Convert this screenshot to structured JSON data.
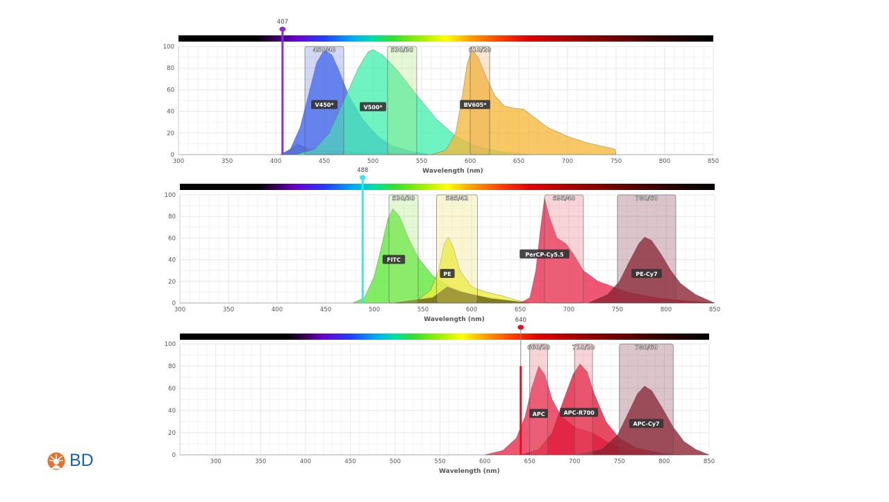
{
  "brand": {
    "logo_text": "BD",
    "logo_color": "#e8702a",
    "text_color": "#1f5fa8"
  },
  "chart_data": [
    {
      "type": "area",
      "xlabel": "Wavelength (nm)",
      "xlim": [
        300,
        850
      ],
      "ylim": [
        0,
        100
      ],
      "xticks": [
        300,
        350,
        400,
        450,
        500,
        550,
        600,
        650,
        700,
        750,
        800,
        850
      ],
      "yticks": [
        0,
        20,
        40,
        60,
        80,
        100
      ],
      "grid": true,
      "laser": {
        "label": "407",
        "wavelength": 407,
        "color": "#8a2be2"
      },
      "filters": [
        {
          "label": "450/40",
          "center": 450,
          "width": 40,
          "color": "#6a7ae0"
        },
        {
          "label": "530/30",
          "center": 530,
          "width": 30,
          "color": "#a8e878"
        },
        {
          "label": "610/20",
          "center": 610,
          "width": 20,
          "color": "#f0a860"
        }
      ],
      "series": [
        {
          "name": "",
          "color": "#b09060",
          "points": [
            [
              405,
              0
            ],
            [
              415,
              5
            ],
            [
              422,
              10
            ],
            [
              435,
              5
            ],
            [
              450,
              4
            ],
            [
              500,
              2
            ],
            [
              560,
              0
            ]
          ]
        },
        {
          "name": "V450*",
          "color": "#3a64f0",
          "label_at": [
            450,
            46
          ],
          "points": [
            [
              405,
              0
            ],
            [
              415,
              5
            ],
            [
              425,
              25
            ],
            [
              435,
              60
            ],
            [
              442,
              85
            ],
            [
              450,
              97
            ],
            [
              458,
              92
            ],
            [
              465,
              78
            ],
            [
              475,
              55
            ],
            [
              490,
              32
            ],
            [
              505,
              17
            ],
            [
              520,
              8
            ],
            [
              540,
              3
            ],
            [
              560,
              0
            ]
          ]
        },
        {
          "name": "V500*",
          "color": "#46f0b0",
          "label_at": [
            500,
            44
          ],
          "points": [
            [
              420,
              0
            ],
            [
              440,
              5
            ],
            [
              455,
              20
            ],
            [
              470,
              50
            ],
            [
              485,
              80
            ],
            [
              495,
              95
            ],
            [
              500,
              97
            ],
            [
              510,
              92
            ],
            [
              525,
              78
            ],
            [
              545,
              55
            ],
            [
              565,
              33
            ],
            [
              585,
              17
            ],
            [
              605,
              8
            ],
            [
              630,
              3
            ],
            [
              660,
              0
            ]
          ]
        },
        {
          "name": "BV605*",
          "color": "#f5b83a",
          "label_at": [
            605,
            46
          ],
          "points": [
            [
              560,
              0
            ],
            [
              575,
              4
            ],
            [
              585,
              20
            ],
            [
              592,
              55
            ],
            [
              597,
              85
            ],
            [
              602,
              97
            ],
            [
              608,
              90
            ],
            [
              615,
              75
            ],
            [
              625,
              55
            ],
            [
              635,
              45
            ],
            [
              645,
              43
            ],
            [
              655,
              42
            ],
            [
              665,
              35
            ],
            [
              680,
              25
            ],
            [
              700,
              17
            ],
            [
              720,
              11
            ],
            [
              740,
              7
            ],
            [
              749,
              5
            ],
            [
              750,
              0
            ]
          ]
        }
      ]
    },
    {
      "type": "area",
      "xlabel": "Wavelength (nm)",
      "xlim": [
        300,
        850
      ],
      "ylim": [
        0,
        100
      ],
      "xticks": [
        300,
        350,
        400,
        450,
        500,
        550,
        600,
        650,
        700,
        750,
        800,
        850
      ],
      "yticks": [
        0,
        20,
        40,
        60,
        80,
        100
      ],
      "grid": true,
      "laser": {
        "label": "488",
        "wavelength": 488,
        "color": "#3ee6e6"
      },
      "filters": [
        {
          "label": "530/30",
          "center": 530,
          "width": 30,
          "color": "#a8e878"
        },
        {
          "label": "585/42",
          "center": 585,
          "width": 42,
          "color": "#f0e070"
        },
        {
          "label": "695/40",
          "center": 695,
          "width": 40,
          "color": "#e87080"
        },
        {
          "label": "780/60",
          "center": 780,
          "width": 60,
          "color": "#8a4050"
        }
      ],
      "series": [
        {
          "name": "FITC",
          "color": "#5ee83a",
          "label_at": [
            520,
            40
          ],
          "points": [
            [
              478,
              0
            ],
            [
              490,
              5
            ],
            [
              500,
              25
            ],
            [
              508,
              55
            ],
            [
              514,
              78
            ],
            [
              519,
              87
            ],
            [
              526,
              80
            ],
            [
              535,
              60
            ],
            [
              545,
              42
            ],
            [
              560,
              25
            ],
            [
              580,
              14
            ],
            [
              600,
              8
            ],
            [
              620,
              5
            ],
            [
              650,
              1
            ],
            [
              660,
              0
            ]
          ]
        },
        {
          "name": "PE",
          "color": "#f0f03a",
          "label_at": [
            575,
            27
          ],
          "points": [
            [
              520,
              0
            ],
            [
              545,
              3
            ],
            [
              558,
              12
            ],
            [
              566,
              30
            ],
            [
              572,
              55
            ],
            [
              576,
              61
            ],
            [
              581,
              52
            ],
            [
              588,
              30
            ],
            [
              600,
              15
            ],
            [
              615,
              10
            ],
            [
              630,
              7
            ],
            [
              645,
              3
            ],
            [
              660,
              0
            ]
          ]
        },
        {
          "name": "",
          "color": "#6a5a18",
          "points": [
            [
              520,
              0
            ],
            [
              560,
              5
            ],
            [
              575,
              15
            ],
            [
              590,
              10
            ],
            [
              620,
              4
            ],
            [
              660,
              0
            ]
          ]
        },
        {
          "name": "PerCP-Cy5.5",
          "color": "#e8284a",
          "label_at": [
            675,
            45
          ],
          "points": [
            [
              650,
              0
            ],
            [
              660,
              5
            ],
            [
              666,
              30
            ],
            [
              671,
              70
            ],
            [
              675,
              97
            ],
            [
              680,
              80
            ],
            [
              688,
              60
            ],
            [
              697,
              55
            ],
            [
              705,
              45
            ],
            [
              715,
              30
            ],
            [
              730,
              20
            ],
            [
              740,
              17
            ],
            [
              760,
              10
            ],
            [
              790,
              5
            ],
            [
              820,
              2
            ],
            [
              850,
              0
            ]
          ]
        },
        {
          "name": "PE-Cy7",
          "color": "#8a2030",
          "label_at": [
            780,
            27
          ],
          "points": [
            [
              720,
              0
            ],
            [
              740,
              8
            ],
            [
              752,
              20
            ],
            [
              762,
              38
            ],
            [
              772,
              55
            ],
            [
              778,
              61
            ],
            [
              785,
              58
            ],
            [
              795,
              45
            ],
            [
              805,
              30
            ],
            [
              815,
              18
            ],
            [
              830,
              8
            ],
            [
              850,
              0
            ]
          ]
        }
      ]
    },
    {
      "type": "area",
      "xlabel": "Wavelength (nm)",
      "xlim": [
        260,
        850
      ],
      "ylim": [
        0,
        100
      ],
      "xticks": [
        300,
        350,
        400,
        450,
        500,
        550,
        600,
        650,
        700,
        750,
        800,
        850
      ],
      "yticks": [
        0,
        20,
        40,
        60,
        80,
        100
      ],
      "grid": true,
      "laser": {
        "label": "640",
        "wavelength": 640,
        "color": "#e01020",
        "level": 80
      },
      "filters": [
        {
          "label": "660/20",
          "center": 660,
          "width": 20,
          "color": "#e87080"
        },
        {
          "label": "710/20",
          "center": 710,
          "width": 20,
          "color": "#e87080"
        },
        {
          "label": "780/60",
          "center": 780,
          "width": 60,
          "color": "#8a4050"
        }
      ],
      "series": [
        {
          "name": "APC",
          "color": "#e8284a",
          "label_at": [
            660,
            37
          ],
          "points": [
            [
              600,
              0
            ],
            [
              620,
              4
            ],
            [
              635,
              15
            ],
            [
              645,
              35
            ],
            [
              652,
              60
            ],
            [
              660,
              80
            ],
            [
              667,
              72
            ],
            [
              675,
              50
            ],
            [
              685,
              35
            ],
            [
              700,
              25
            ],
            [
              720,
              20
            ],
            [
              740,
              10
            ],
            [
              760,
              4
            ],
            [
              790,
              0
            ]
          ]
        },
        {
          "name": "APC-R700",
          "color": "#e01838",
          "label_at": [
            705,
            38
          ],
          "points": [
            [
              640,
              0
            ],
            [
              660,
              5
            ],
            [
              675,
              20
            ],
            [
              688,
              50
            ],
            [
              698,
              72
            ],
            [
              706,
              82
            ],
            [
              714,
              75
            ],
            [
              722,
              55
            ],
            [
              735,
              30
            ],
            [
              750,
              15
            ],
            [
              770,
              6
            ],
            [
              800,
              1
            ],
            [
              820,
              0
            ]
          ]
        },
        {
          "name": "APC-Cy7",
          "color": "#8a2030",
          "label_at": [
            780,
            28
          ],
          "points": [
            [
              700,
              0
            ],
            [
              730,
              5
            ],
            [
              748,
              18
            ],
            [
              760,
              38
            ],
            [
              770,
              55
            ],
            [
              778,
              62
            ],
            [
              786,
              58
            ],
            [
              798,
              42
            ],
            [
              810,
              25
            ],
            [
              822,
              12
            ],
            [
              835,
              5
            ],
            [
              850,
              0
            ]
          ]
        }
      ]
    }
  ]
}
